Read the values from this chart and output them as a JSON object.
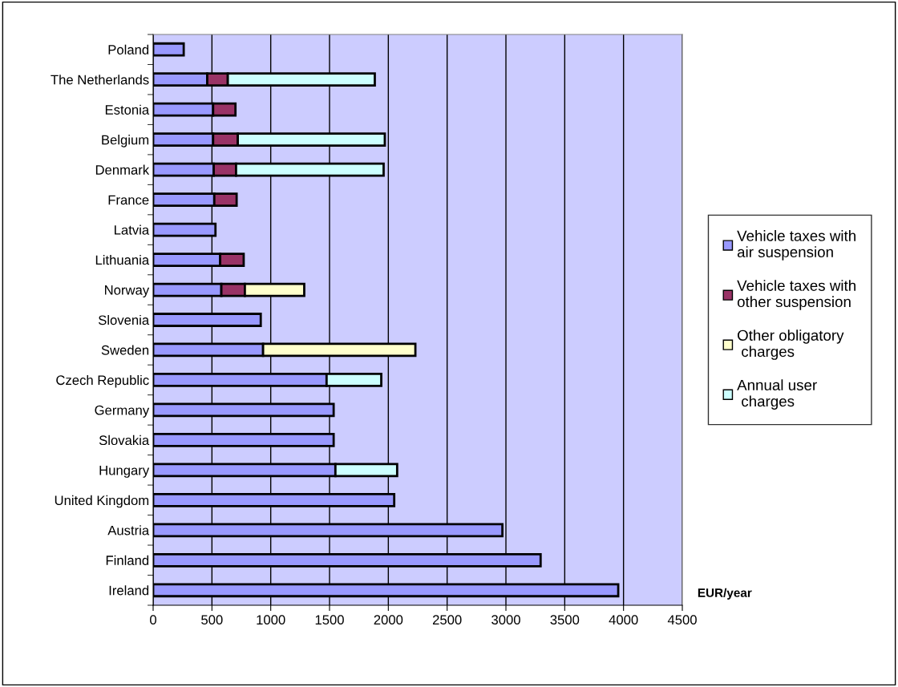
{
  "chart_data": {
    "type": "bar",
    "orientation": "horizontal",
    "stacked": true,
    "categories": [
      "Poland",
      "The Netherlands",
      "Estonia",
      "Belgium",
      "Denmark",
      "France",
      "Latvia",
      "Lithuania",
      "Norway",
      "Slovenia",
      "Sweden",
      "Czech Republic",
      "Germany",
      "Slovakia",
      "Hungary",
      "United Kingdom",
      "Austria",
      "Finland",
      "Ireland"
    ],
    "series": [
      {
        "name": "Vehicle taxes with air suspension",
        "color": "#9999ff",
        "values": [
          260,
          460,
          510,
          510,
          515,
          520,
          530,
          570,
          580,
          915,
          935,
          1475,
          1535,
          1535,
          1550,
          2050,
          2970,
          3295,
          3955
        ]
      },
      {
        "name": "Vehicle taxes with other suspension",
        "color": "#993366",
        "values": [
          null,
          175,
          190,
          210,
          190,
          190,
          null,
          200,
          200,
          null,
          null,
          null,
          null,
          null,
          null,
          null,
          null,
          null,
          null
        ]
      },
      {
        "name": "Other obligatory charges",
        "color": "#ffffcc",
        "values": [
          null,
          null,
          null,
          null,
          null,
          null,
          null,
          null,
          505,
          null,
          1295,
          null,
          null,
          null,
          null,
          null,
          null,
          null,
          null
        ]
      },
      {
        "name": "Annual user charges",
        "color": "#ccffff",
        "values": [
          null,
          1250,
          null,
          1250,
          1255,
          null,
          null,
          null,
          null,
          null,
          null,
          465,
          null,
          null,
          525,
          null,
          null,
          null,
          null
        ]
      }
    ],
    "xlabel": "EUR/year",
    "xlim": [
      0,
      4500
    ],
    "xticks": [
      0,
      500,
      1000,
      1500,
      2000,
      2500,
      3000,
      3500,
      4000,
      4500
    ],
    "grid": "x",
    "legend": "right"
  }
}
